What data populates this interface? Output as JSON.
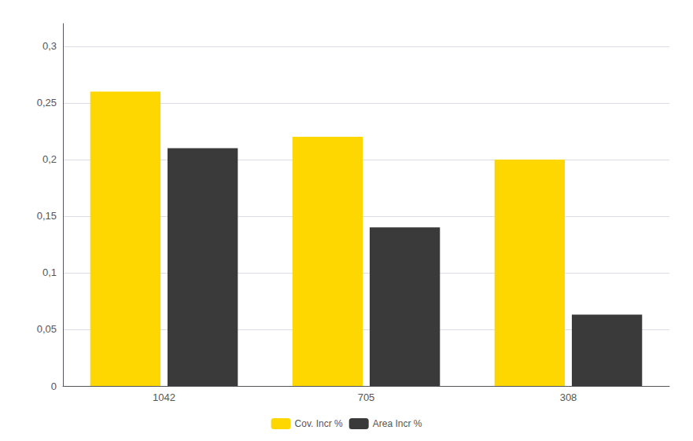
{
  "chart_data": {
    "type": "bar",
    "categories": [
      "1042",
      "705",
      "308"
    ],
    "series": [
      {
        "name": "Cov. Incr %",
        "color": "#FFD700",
        "values": [
          0.26,
          0.22,
          0.2
        ]
      },
      {
        "name": "Area Incr %",
        "color": "#3a3a3a",
        "values": [
          0.21,
          0.14,
          0.063
        ]
      }
    ],
    "ylim": [
      0,
      0.32
    ],
    "yticks": [
      0,
      {
        "value": 0.05,
        "label": "0,05"
      },
      {
        "value": 0.1,
        "label": "0,1"
      },
      {
        "value": 0.15,
        "label": "0,15"
      },
      {
        "value": 0.2,
        "label": "0,2"
      },
      {
        "value": 0.25,
        "label": "0,25"
      },
      {
        "value": 0.3,
        "label": "0,3"
      }
    ],
    "grid": true,
    "legend": "bottom"
  }
}
